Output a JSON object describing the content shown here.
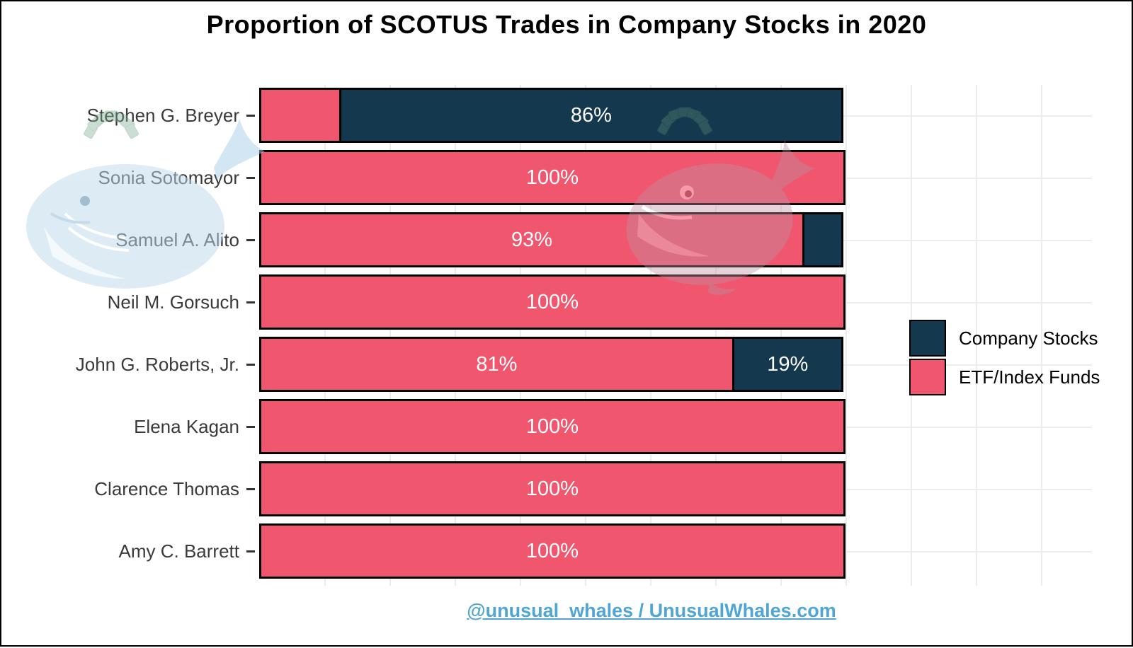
{
  "title": "Proportion of SCOTUS Trades in Company Stocks in 2020",
  "footer": {
    "text": "@unusual_whales / UnusualWhales.com",
    "color": "#4fa5d5"
  },
  "colors": {
    "company_stocks": "#14384d",
    "etf_index_funds": "#f0566e",
    "bar_border": "#000000",
    "bar_value_label": "#ffffff",
    "axis_label": "#3a3a3a",
    "grid": "#ececec"
  },
  "legend": {
    "position": "right",
    "items": [
      {
        "label": "Company Stocks",
        "color": "#14384d"
      },
      {
        "label": "ETF/Index Funds",
        "color": "#f0566e"
      }
    ]
  },
  "chart_data": {
    "type": "bar",
    "orientation": "horizontal",
    "stacked": true,
    "title": "Proportion of SCOTUS Trades in Company Stocks in 2020",
    "xlabel": "",
    "ylabel": "",
    "xlim": [
      0,
      100
    ],
    "unit": "percent",
    "grid": true,
    "legend_position": "right",
    "categories": [
      "Stephen G. Breyer",
      "Sonia Sotomayor",
      "Samuel A. Alito",
      "Neil M. Gorsuch",
      "John G. Roberts, Jr.",
      "Elena Kagan",
      "Clarence Thomas",
      "Amy C. Barrett"
    ],
    "series": [
      {
        "name": "ETF/Index Funds",
        "color": "#f0566e",
        "values": [
          14,
          100,
          93,
          100,
          81,
          100,
          100,
          100
        ],
        "bar_labels": [
          "",
          "100%",
          "93%",
          "100%",
          "81%",
          "100%",
          "100%",
          "100%"
        ]
      },
      {
        "name": "Company Stocks",
        "color": "#14384d",
        "values": [
          86,
          0,
          7,
          0,
          19,
          0,
          0,
          0
        ],
        "bar_labels": [
          "86%",
          "",
          "",
          "",
          "19%",
          "",
          "",
          ""
        ]
      }
    ]
  }
}
